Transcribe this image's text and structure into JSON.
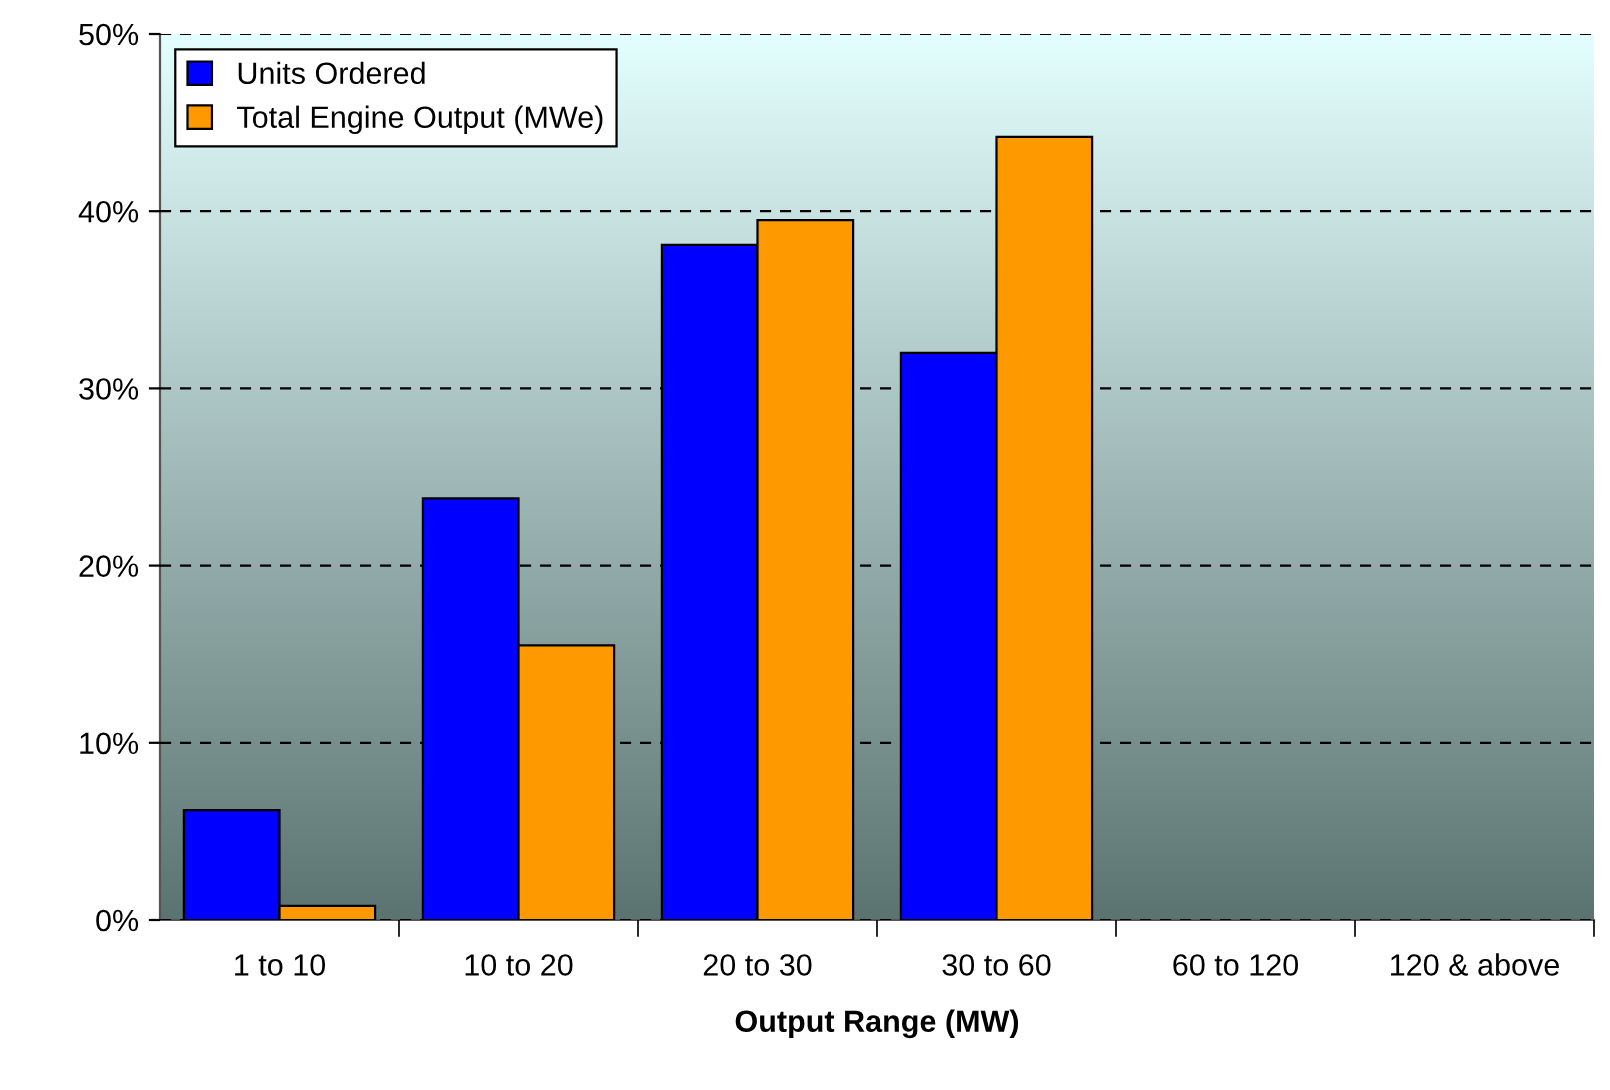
{
  "chart_data": {
    "type": "bar",
    "xlabel": "Output Range (MW)",
    "categories": [
      "1 to 10",
      "10 to 20",
      "20 to 30",
      "30 to 60",
      "60 to 120",
      "120 & above"
    ],
    "series": [
      {
        "name": "Units Ordered",
        "color": "#0000ff",
        "values": [
          6.2,
          23.8,
          38.1,
          32.0,
          null,
          null
        ]
      },
      {
        "name": "Total Engine Output (MWe)",
        "color": "#ff9900",
        "values": [
          0.8,
          15.5,
          39.5,
          44.2,
          null,
          null
        ]
      }
    ],
    "ylim": [
      0,
      50
    ],
    "yticks": [
      {
        "value": 0,
        "label": "0%"
      },
      {
        "value": 10,
        "label": "10%"
      },
      {
        "value": 20,
        "label": "20%"
      },
      {
        "value": 30,
        "label": "30%"
      },
      {
        "value": 40,
        "label": "40%"
      },
      {
        "value": 50,
        "label": "50%"
      }
    ],
    "grid": "y",
    "legend": "top left"
  }
}
